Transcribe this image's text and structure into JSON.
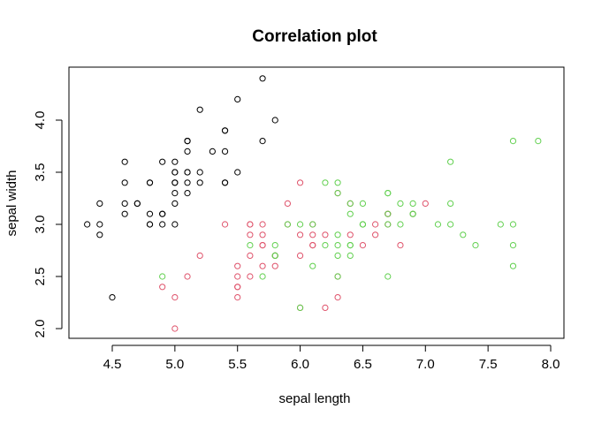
{
  "chart_data": {
    "type": "scatter",
    "title": "Correlation plot",
    "xlabel": "sepal length",
    "ylabel": "sepal width",
    "xlim": [
      4.3,
      7.9
    ],
    "ylim": [
      2.0,
      4.4
    ],
    "x_ticks": [
      "4.5",
      "5.0",
      "5.5",
      "6.0",
      "6.5",
      "7.0",
      "7.5",
      "8.0"
    ],
    "y_ticks": [
      "2.0",
      "2.5",
      "3.0",
      "3.5",
      "4.0"
    ],
    "grid": false,
    "marker": "open-circle",
    "series": [
      {
        "color": "#000000",
        "points": [
          [
            5.1,
            3.5
          ],
          [
            4.9,
            3.0
          ],
          [
            4.7,
            3.2
          ],
          [
            4.6,
            3.1
          ],
          [
            5.0,
            3.6
          ],
          [
            5.4,
            3.9
          ],
          [
            4.6,
            3.4
          ],
          [
            5.0,
            3.4
          ],
          [
            4.4,
            2.9
          ],
          [
            4.9,
            3.1
          ],
          [
            5.4,
            3.7
          ],
          [
            4.8,
            3.4
          ],
          [
            4.8,
            3.0
          ],
          [
            4.3,
            3.0
          ],
          [
            5.8,
            4.0
          ],
          [
            5.7,
            4.4
          ],
          [
            5.4,
            3.9
          ],
          [
            5.1,
            3.5
          ],
          [
            5.7,
            3.8
          ],
          [
            5.1,
            3.8
          ],
          [
            5.4,
            3.4
          ],
          [
            5.1,
            3.7
          ],
          [
            4.6,
            3.6
          ],
          [
            5.1,
            3.3
          ],
          [
            4.8,
            3.4
          ],
          [
            5.0,
            3.0
          ],
          [
            5.0,
            3.4
          ],
          [
            5.2,
            3.5
          ],
          [
            5.2,
            3.4
          ],
          [
            4.7,
            3.2
          ],
          [
            4.8,
            3.1
          ],
          [
            5.4,
            3.4
          ],
          [
            5.2,
            4.1
          ],
          [
            5.5,
            4.2
          ],
          [
            4.9,
            3.1
          ],
          [
            5.0,
            3.2
          ],
          [
            5.5,
            3.5
          ],
          [
            4.9,
            3.6
          ],
          [
            4.4,
            3.0
          ],
          [
            5.1,
            3.4
          ],
          [
            5.0,
            3.5
          ],
          [
            4.5,
            2.3
          ],
          [
            4.4,
            3.2
          ],
          [
            5.0,
            3.5
          ],
          [
            5.1,
            3.8
          ],
          [
            4.8,
            3.0
          ],
          [
            5.1,
            3.8
          ],
          [
            4.6,
            3.2
          ],
          [
            5.3,
            3.7
          ],
          [
            5.0,
            3.3
          ]
        ]
      },
      {
        "color": "#DF536B",
        "points": [
          [
            7.0,
            3.2
          ],
          [
            6.4,
            3.2
          ],
          [
            6.9,
            3.1
          ],
          [
            5.5,
            2.3
          ],
          [
            6.5,
            2.8
          ],
          [
            5.7,
            2.8
          ],
          [
            6.3,
            3.3
          ],
          [
            4.9,
            2.4
          ],
          [
            6.6,
            2.9
          ],
          [
            5.2,
            2.7
          ],
          [
            5.0,
            2.0
          ],
          [
            5.9,
            3.0
          ],
          [
            6.0,
            2.2
          ],
          [
            6.1,
            2.9
          ],
          [
            5.6,
            2.9
          ],
          [
            6.7,
            3.1
          ],
          [
            5.6,
            3.0
          ],
          [
            5.8,
            2.7
          ],
          [
            6.2,
            2.2
          ],
          [
            5.6,
            2.5
          ],
          [
            5.9,
            3.2
          ],
          [
            6.1,
            2.8
          ],
          [
            6.3,
            2.5
          ],
          [
            6.1,
            2.8
          ],
          [
            6.4,
            2.9
          ],
          [
            6.6,
            3.0
          ],
          [
            6.8,
            2.8
          ],
          [
            6.7,
            3.0
          ],
          [
            6.0,
            2.9
          ],
          [
            5.7,
            2.6
          ],
          [
            5.5,
            2.4
          ],
          [
            5.5,
            2.4
          ],
          [
            5.8,
            2.7
          ],
          [
            6.0,
            2.7
          ],
          [
            5.4,
            3.0
          ],
          [
            6.0,
            3.4
          ],
          [
            6.7,
            3.1
          ],
          [
            6.3,
            2.3
          ],
          [
            5.6,
            3.0
          ],
          [
            5.5,
            2.5
          ],
          [
            5.5,
            2.6
          ],
          [
            6.1,
            3.0
          ],
          [
            5.8,
            2.6
          ],
          [
            5.0,
            2.3
          ],
          [
            5.6,
            2.7
          ],
          [
            5.7,
            3.0
          ],
          [
            5.7,
            2.9
          ],
          [
            6.2,
            2.9
          ],
          [
            5.1,
            2.5
          ],
          [
            5.7,
            2.8
          ]
        ]
      },
      {
        "color": "#61D04F",
        "points": [
          [
            6.3,
            3.3
          ],
          [
            5.8,
            2.7
          ],
          [
            7.1,
            3.0
          ],
          [
            6.3,
            2.9
          ],
          [
            6.5,
            3.0
          ],
          [
            7.6,
            3.0
          ],
          [
            4.9,
            2.5
          ],
          [
            7.3,
            2.9
          ],
          [
            6.7,
            2.5
          ],
          [
            7.2,
            3.6
          ],
          [
            6.5,
            3.2
          ],
          [
            6.4,
            2.7
          ],
          [
            6.8,
            3.0
          ],
          [
            5.7,
            2.5
          ],
          [
            5.8,
            2.8
          ],
          [
            6.4,
            3.2
          ],
          [
            6.5,
            3.0
          ],
          [
            7.7,
            3.8
          ],
          [
            7.7,
            2.6
          ],
          [
            6.0,
            2.2
          ],
          [
            6.9,
            3.2
          ],
          [
            5.6,
            2.8
          ],
          [
            7.7,
            2.8
          ],
          [
            6.3,
            2.7
          ],
          [
            6.7,
            3.3
          ],
          [
            7.2,
            3.2
          ],
          [
            6.2,
            2.8
          ],
          [
            6.1,
            3.0
          ],
          [
            6.4,
            2.8
          ],
          [
            7.2,
            3.0
          ],
          [
            7.4,
            2.8
          ],
          [
            7.9,
            3.8
          ],
          [
            6.4,
            2.8
          ],
          [
            6.3,
            2.8
          ],
          [
            6.1,
            2.6
          ],
          [
            7.7,
            3.0
          ],
          [
            6.3,
            3.4
          ],
          [
            6.4,
            3.1
          ],
          [
            6.0,
            3.0
          ],
          [
            6.9,
            3.1
          ],
          [
            6.7,
            3.1
          ],
          [
            6.9,
            3.1
          ],
          [
            5.8,
            2.7
          ],
          [
            6.8,
            3.2
          ],
          [
            6.7,
            3.3
          ],
          [
            6.7,
            3.0
          ],
          [
            6.3,
            2.5
          ],
          [
            6.5,
            3.0
          ],
          [
            6.2,
            3.4
          ],
          [
            5.9,
            3.0
          ]
        ]
      }
    ]
  }
}
